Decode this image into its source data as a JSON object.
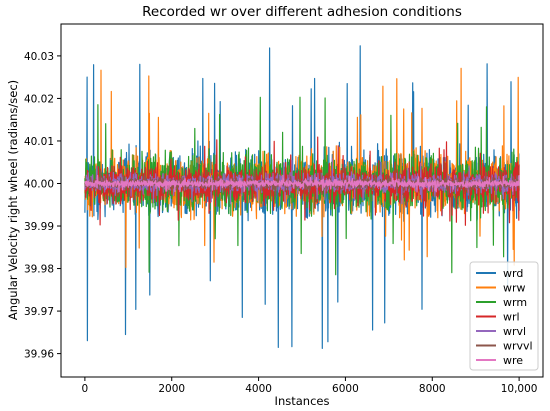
{
  "chart_data": {
    "type": "line",
    "title": "Recorded wr over different adhesion conditions",
    "xlabel": "Instances",
    "ylabel": "Angular Velocity right wheel (radians/sec)",
    "xlim": [
      -550,
      10550
    ],
    "ylim": [
      39.9545,
      40.0375
    ],
    "x_ticks": [
      0,
      2000,
      4000,
      6000,
      8000,
      10000
    ],
    "x_tick_labels": [
      "0",
      "2000",
      "4000",
      "6000",
      "8000",
      "10,000"
    ],
    "y_ticks": [
      39.96,
      39.97,
      39.98,
      39.99,
      40.0,
      40.01,
      40.02,
      40.03
    ],
    "y_tick_labels": [
      "39.96",
      "39.97",
      "39.98",
      "39.99",
      "40.00",
      "40.01",
      "40.02",
      "40.03"
    ],
    "n_points": 10000,
    "x_range": [
      0,
      10000
    ],
    "legend_position": "lower right",
    "grid": false,
    "series": [
      {
        "name": "wrd",
        "color": "#1f77b4",
        "center": 40.0,
        "amplitude": 0.007,
        "max": 40.033,
        "min": 39.959
      },
      {
        "name": "wrw",
        "color": "#ff7f0e",
        "center": 40.0,
        "amplitude": 0.006,
        "max": 40.028,
        "min": 39.979
      },
      {
        "name": "wrm",
        "color": "#2ca02c",
        "center": 40.0,
        "amplitude": 0.006,
        "max": 40.021,
        "min": 39.978
      },
      {
        "name": "wrl",
        "color": "#d62728",
        "center": 40.0,
        "amplitude": 0.004,
        "max": 40.011,
        "min": 39.99
      },
      {
        "name": "wrvl",
        "color": "#9467bd",
        "center": 40.0,
        "amplitude": 0.002,
        "max": 40.006,
        "min": 39.995
      },
      {
        "name": "wrvvl",
        "color": "#8c564b",
        "center": 40.0,
        "amplitude": 0.0012,
        "max": 40.003,
        "min": 39.997
      },
      {
        "name": "wre",
        "color": "#e377c2",
        "center": 40.0,
        "amplitude": 0.0008,
        "max": 40.002,
        "min": 39.998
      }
    ]
  }
}
